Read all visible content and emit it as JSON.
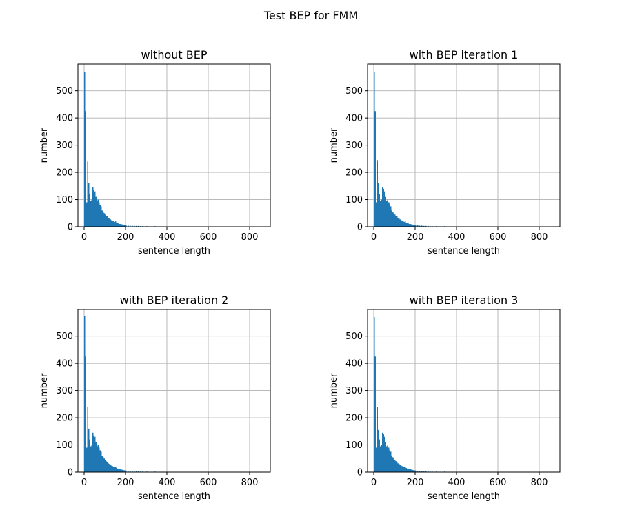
{
  "figure": {
    "title": "Test BEP for FMM"
  },
  "chart_data": [
    {
      "type": "bar",
      "title": "without BEP",
      "xlabel": "sentence length",
      "ylabel": "number",
      "xlim": [
        -30,
        900
      ],
      "ylim": [
        0,
        598
      ],
      "xticks": [
        0,
        200,
        400,
        600,
        800
      ],
      "yticks": [
        0,
        100,
        200,
        300,
        400,
        500
      ],
      "grid": true,
      "bin_width": 5,
      "x": [
        0,
        5,
        10,
        15,
        20,
        25,
        30,
        35,
        40,
        45,
        50,
        55,
        60,
        65,
        70,
        75,
        80,
        85,
        90,
        95,
        100,
        105,
        110,
        115,
        120,
        125,
        130,
        135,
        140,
        145,
        150,
        155,
        160,
        165,
        170,
        175,
        180,
        185,
        190,
        195,
        200,
        210,
        220,
        230,
        240,
        250,
        260,
        270,
        280,
        300,
        320,
        340,
        360,
        380,
        400,
        420,
        440,
        460
      ],
      "values": [
        570,
        425,
        90,
        240,
        160,
        120,
        95,
        100,
        145,
        135,
        130,
        110,
        95,
        100,
        90,
        80,
        75,
        60,
        55,
        50,
        45,
        40,
        38,
        32,
        30,
        27,
        24,
        22,
        20,
        18,
        20,
        15,
        13,
        12,
        10,
        10,
        9,
        8,
        7,
        6,
        6,
        5,
        4,
        4,
        3,
        3,
        3,
        2,
        2,
        2,
        1,
        2,
        1,
        1,
        1,
        1,
        1,
        1
      ]
    },
    {
      "type": "bar",
      "title": "with BEP iteration 1",
      "xlabel": "sentence length",
      "ylabel": "number",
      "xlim": [
        -30,
        900
      ],
      "ylim": [
        0,
        598
      ],
      "xticks": [
        0,
        200,
        400,
        600,
        800
      ],
      "yticks": [
        0,
        100,
        200,
        300,
        400,
        500
      ],
      "grid": true,
      "bin_width": 5,
      "x": [
        0,
        5,
        10,
        15,
        20,
        25,
        30,
        35,
        40,
        45,
        50,
        55,
        60,
        65,
        70,
        75,
        80,
        85,
        90,
        95,
        100,
        105,
        110,
        115,
        120,
        125,
        130,
        135,
        140,
        145,
        150,
        155,
        160,
        165,
        170,
        175,
        180,
        185,
        190,
        195,
        200,
        210,
        220,
        230,
        240,
        250,
        260,
        270,
        280,
        300,
        320,
        340,
        360,
        380,
        400,
        420,
        440,
        460
      ],
      "values": [
        570,
        425,
        90,
        245,
        160,
        120,
        95,
        100,
        145,
        140,
        130,
        110,
        95,
        100,
        90,
        85,
        75,
        60,
        55,
        50,
        45,
        40,
        38,
        32,
        30,
        27,
        24,
        22,
        20,
        18,
        20,
        15,
        13,
        12,
        10,
        10,
        9,
        8,
        7,
        6,
        6,
        5,
        4,
        4,
        3,
        3,
        3,
        2,
        2,
        2,
        1,
        2,
        1,
        1,
        1,
        1,
        1,
        1
      ]
    },
    {
      "type": "bar",
      "title": "with BEP iteration 2",
      "xlabel": "sentence length",
      "ylabel": "number",
      "xlim": [
        -30,
        900
      ],
      "ylim": [
        0,
        598
      ],
      "xticks": [
        0,
        200,
        400,
        600,
        800
      ],
      "yticks": [
        0,
        100,
        200,
        300,
        400,
        500
      ],
      "grid": true,
      "bin_width": 5,
      "x": [
        0,
        5,
        10,
        15,
        20,
        25,
        30,
        35,
        40,
        45,
        50,
        55,
        60,
        65,
        70,
        75,
        80,
        85,
        90,
        95,
        100,
        105,
        110,
        115,
        120,
        125,
        130,
        135,
        140,
        145,
        150,
        155,
        160,
        165,
        170,
        175,
        180,
        185,
        190,
        195,
        200,
        210,
        220,
        230,
        240,
        250,
        260,
        270,
        280,
        300,
        320,
        340,
        360,
        380,
        400,
        420,
        440,
        460
      ],
      "values": [
        575,
        425,
        90,
        240,
        160,
        120,
        95,
        100,
        145,
        135,
        130,
        110,
        95,
        100,
        90,
        80,
        75,
        60,
        55,
        50,
        45,
        40,
        38,
        32,
        30,
        27,
        24,
        22,
        20,
        18,
        20,
        15,
        13,
        12,
        10,
        10,
        9,
        8,
        7,
        6,
        6,
        5,
        4,
        4,
        3,
        3,
        3,
        2,
        2,
        2,
        1,
        2,
        1,
        1,
        1,
        1,
        1,
        1
      ]
    },
    {
      "type": "bar",
      "title": "with BEP iteration 3",
      "xlabel": "sentence length",
      "ylabel": "number",
      "xlim": [
        -30,
        900
      ],
      "ylim": [
        0,
        598
      ],
      "xticks": [
        0,
        200,
        400,
        600,
        800
      ],
      "yticks": [
        0,
        100,
        200,
        300,
        400,
        500
      ],
      "grid": true,
      "bin_width": 5,
      "x": [
        0,
        5,
        10,
        15,
        20,
        25,
        30,
        35,
        40,
        45,
        50,
        55,
        60,
        65,
        70,
        75,
        80,
        85,
        90,
        95,
        100,
        105,
        110,
        115,
        120,
        125,
        130,
        135,
        140,
        145,
        150,
        155,
        160,
        165,
        170,
        175,
        180,
        185,
        190,
        195,
        200,
        210,
        220,
        230,
        240,
        250,
        260,
        270,
        280,
        300,
        320,
        340,
        360,
        380,
        400,
        420,
        440,
        460
      ],
      "values": [
        570,
        425,
        90,
        240,
        155,
        120,
        95,
        100,
        145,
        140,
        130,
        110,
        95,
        100,
        90,
        80,
        75,
        60,
        55,
        50,
        45,
        40,
        38,
        32,
        30,
        27,
        24,
        22,
        20,
        18,
        20,
        15,
        13,
        12,
        10,
        10,
        9,
        8,
        7,
        6,
        6,
        5,
        4,
        4,
        3,
        3,
        3,
        2,
        2,
        2,
        1,
        2,
        1,
        1,
        1,
        1,
        1,
        1
      ]
    }
  ]
}
